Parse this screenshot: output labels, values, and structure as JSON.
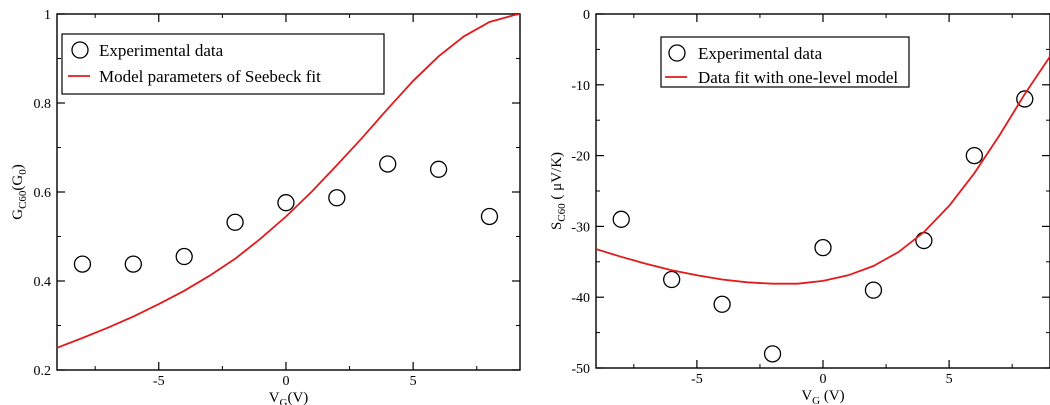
{
  "chart_data": [
    {
      "type": "scatter",
      "title": "",
      "xlabel": {
        "main": "V",
        "sub": "G",
        "tail": "(V)"
      },
      "ylabel": {
        "main": "G",
        "sub": "C60",
        "tail": "(G",
        "sub2": "0",
        "end": ")"
      },
      "xlim": [
        -9,
        9.2
      ],
      "ylim": [
        0.2,
        1.0
      ],
      "xticks": [
        -5,
        0,
        5
      ],
      "xtick_labels": [
        "-5",
        "0",
        "5"
      ],
      "yticks": [
        0.2,
        0.4,
        0.6,
        0.8,
        1.0
      ],
      "ytick_labels": [
        "0.2",
        "0.4",
        "0.6",
        "0.8",
        "1"
      ],
      "grid": false,
      "legend_position": "top-left",
      "series": [
        {
          "name": "Experimental data",
          "kind": "scatter",
          "marker": "open-circle",
          "color": "#000000",
          "x": [
            -8,
            -6,
            -4,
            -2,
            0,
            2,
            4,
            6,
            8
          ],
          "y": [
            0.438,
            0.438,
            0.455,
            0.532,
            0.576,
            0.587,
            0.663,
            0.651,
            0.545
          ]
        },
        {
          "name": "Model parameters of Seebeck fit",
          "kind": "line",
          "color": "#e31a1c",
          "x": [
            -9,
            -8,
            -7,
            -6,
            -5,
            -4,
            -3,
            -2,
            -1,
            0,
            1,
            2,
            3,
            4,
            5,
            6,
            7,
            8,
            9,
            9.2
          ],
          "y": [
            0.25,
            0.272,
            0.295,
            0.32,
            0.348,
            0.378,
            0.412,
            0.45,
            0.495,
            0.545,
            0.6,
            0.66,
            0.722,
            0.787,
            0.85,
            0.905,
            0.95,
            0.982,
            0.998,
            1.0
          ]
        }
      ]
    },
    {
      "type": "scatter",
      "title": "",
      "xlabel": {
        "main": "V",
        "sub": "G",
        "tail": " (V)"
      },
      "ylabel": {
        "main": "S",
        "sub": "C60",
        "tail": " ( μV/K)"
      },
      "xlim": [
        -9,
        9
      ],
      "ylim": [
        -50,
        0
      ],
      "xticks": [
        -5,
        0,
        5
      ],
      "xtick_labels": [
        "-5",
        "0",
        "5"
      ],
      "yticks": [
        -50,
        -40,
        -30,
        -20,
        -10,
        0
      ],
      "ytick_labels": [
        "-50",
        "-40",
        "-30",
        "-20",
        "-10",
        "0"
      ],
      "grid": false,
      "legend_position": "top-center",
      "series": [
        {
          "name": "Experimental data",
          "kind": "scatter",
          "marker": "open-circle",
          "color": "#000000",
          "x": [
            -8,
            -6,
            -4,
            -2,
            0,
            2,
            4,
            6,
            8
          ],
          "y": [
            -29,
            -37.5,
            -41,
            -48,
            -33,
            -39,
            -32,
            -20,
            -12
          ]
        },
        {
          "name": "Data fit with one-level model",
          "kind": "line",
          "color": "#e31a1c",
          "x": [
            -9,
            -8,
            -7,
            -6,
            -5,
            -4,
            -3,
            -2,
            -1,
            0,
            1,
            2,
            3,
            4,
            5,
            6,
            7,
            8,
            9
          ],
          "y": [
            -33.2,
            -34.3,
            -35.3,
            -36.2,
            -36.9,
            -37.5,
            -37.9,
            -38.1,
            -38.1,
            -37.7,
            -36.9,
            -35.6,
            -33.6,
            -30.8,
            -27.1,
            -22.5,
            -17.1,
            -11.3,
            -6.0
          ]
        }
      ]
    }
  ]
}
